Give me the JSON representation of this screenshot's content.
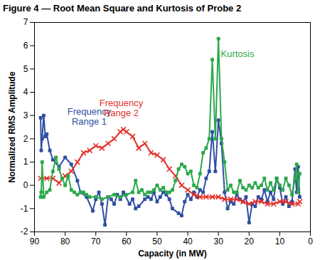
{
  "chart_data": {
    "type": "line",
    "title": "Figure 4 — Root Mean Square and Kurtosis of Probe 2",
    "x_label": "Capacity (in MW)",
    "y_label": "Normalized RMS Amplitude",
    "xlim": [
      90,
      0
    ],
    "xticks": [
      90,
      80,
      70,
      60,
      50,
      40,
      30,
      20,
      10,
      0
    ],
    "ylim": [
      -2,
      7
    ],
    "yticks": [
      -2,
      -1,
      0,
      1,
      2,
      3,
      4,
      5,
      6,
      7
    ],
    "grid": false,
    "series": [
      {
        "name": "Frequency Range 1",
        "color": "#2f4fa2",
        "marker": "square",
        "x": [
          88,
          87.8,
          87.5,
          87,
          86.5,
          86,
          85,
          84,
          82,
          80,
          78,
          76,
          75,
          73,
          71,
          70,
          69,
          68,
          67,
          66,
          65,
          64,
          63,
          62,
          61,
          59,
          58,
          57,
          56,
          54,
          53,
          52,
          51,
          50,
          49,
          48,
          47,
          46,
          45,
          43,
          42,
          41,
          40,
          39,
          38,
          37,
          36,
          35,
          34,
          33,
          32,
          31,
          30,
          29,
          28,
          27,
          26,
          25,
          24,
          23,
          22,
          21,
          20,
          19,
          18,
          17,
          16,
          15,
          14,
          13,
          12,
          11,
          10,
          9,
          8,
          7,
          6,
          5,
          4.5,
          4,
          3.5
        ],
        "values": [
          2.9,
          1.5,
          2.0,
          3.0,
          2.1,
          2.2,
          1.5,
          1.1,
          0.8,
          1.2,
          0.9,
          0.2,
          -0.3,
          -0.5,
          -1.1,
          -0.6,
          -0.3,
          -0.8,
          -1.7,
          -0.5,
          -0.6,
          -0.8,
          -0.4,
          -0.6,
          -0.3,
          -0.8,
          -0.6,
          -1.0,
          -0.9,
          -0.6,
          -0.5,
          -0.6,
          -0.3,
          -0.7,
          -0.5,
          -0.3,
          -0.4,
          -0.6,
          -1.0,
          -1.2,
          -1.3,
          -0.7,
          -0.4,
          -0.6,
          -0.3,
          -0.5,
          -0.2,
          -0.3,
          0.3,
          0.6,
          2.3,
          0.6,
          2.8,
          1.8,
          -0.3,
          -1.0,
          -0.7,
          -0.8,
          -0.4,
          -0.6,
          -0.7,
          -0.5,
          -1.6,
          -0.8,
          -0.9,
          -0.5,
          -0.6,
          -0.2,
          -0.7,
          -0.3,
          -0.6,
          0.3,
          -0.1,
          -0.8,
          -0.5,
          -0.9,
          -0.7,
          0.7,
          -0.3,
          0.8,
          -0.5
        ]
      },
      {
        "name": "Frequency Range 2",
        "color": "#e4312b",
        "marker": "x",
        "x": [
          88,
          86,
          84,
          82,
          80,
          78,
          76,
          74,
          72,
          70,
          68,
          66,
          64,
          62,
          61,
          60,
          58,
          56,
          54,
          52,
          50,
          48,
          46,
          44,
          42,
          40,
          38,
          36,
          34,
          32,
          30,
          28,
          26,
          24,
          22,
          20,
          18,
          16,
          14,
          12,
          10,
          8,
          6,
          4,
          3.5
        ],
        "values": [
          0.3,
          0.3,
          0.3,
          0.1,
          0.4,
          0.6,
          1.0,
          1.4,
          1.5,
          1.7,
          1.6,
          1.8,
          2.0,
          2.3,
          2.4,
          2.3,
          2.1,
          1.6,
          1.8,
          1.4,
          1.3,
          1.1,
          0.7,
          0.4,
          0.0,
          -0.2,
          -0.4,
          -0.5,
          -0.5,
          -0.5,
          -0.5,
          -0.6,
          -0.6,
          -0.6,
          -0.7,
          -0.8,
          -0.7,
          -0.7,
          -0.8,
          -0.8,
          -0.7,
          -0.7,
          -0.8,
          -0.8,
          -0.7
        ]
      },
      {
        "name": "Kurtosis",
        "color": "#2ba84a",
        "marker": "square",
        "x": [
          88,
          87.8,
          87.5,
          87,
          86,
          85,
          84,
          83,
          82,
          81,
          80,
          79,
          78,
          77,
          76,
          75,
          74,
          73,
          72,
          70,
          68,
          66,
          64,
          62,
          60,
          58,
          57,
          56,
          55,
          54,
          53,
          52,
          51,
          50,
          49,
          48,
          47,
          46,
          45,
          44,
          43,
          42,
          41,
          40,
          39,
          38,
          37,
          36,
          35,
          34,
          33,
          32,
          31,
          30,
          29,
          28,
          27,
          26,
          25,
          24,
          23,
          22,
          21,
          20,
          19,
          18,
          17,
          16,
          15,
          14,
          13,
          12,
          11,
          10,
          9,
          8,
          7,
          6,
          5,
          4.5,
          4,
          3.5
        ],
        "values": [
          -0.5,
          -0.3,
          1.0,
          -0.5,
          -0.3,
          -0.2,
          0.6,
          1.2,
          0.7,
          0.3,
          0.0,
          0.4,
          -0.2,
          -0.3,
          -0.4,
          -0.3,
          -0.3,
          -0.4,
          -0.5,
          -0.5,
          -0.6,
          -0.5,
          -0.4,
          -0.5,
          -0.4,
          -0.3,
          0.2,
          -0.3,
          -0.2,
          -0.4,
          -0.3,
          -0.3,
          -0.2,
          0.0,
          -0.2,
          -0.1,
          -0.3,
          -0.3,
          -0.2,
          0.2,
          0.7,
          0.9,
          0.8,
          0.5,
          0.6,
          0.0,
          -0.1,
          0.5,
          1.4,
          1.6,
          2.0,
          5.4,
          2.0,
          6.3,
          2.0,
          1.0,
          -0.2,
          0.0,
          -0.3,
          -0.3,
          0.2,
          -0.1,
          -0.2,
          0.0,
          -0.1,
          0.1,
          -0.1,
          0.0,
          0.3,
          -0.2,
          0.1,
          -0.2,
          0.3,
          0.0,
          -0.2,
          0.3,
          0.0,
          -0.4,
          0.3,
          0.9,
          -0.3,
          0.5
        ]
      }
    ]
  }
}
